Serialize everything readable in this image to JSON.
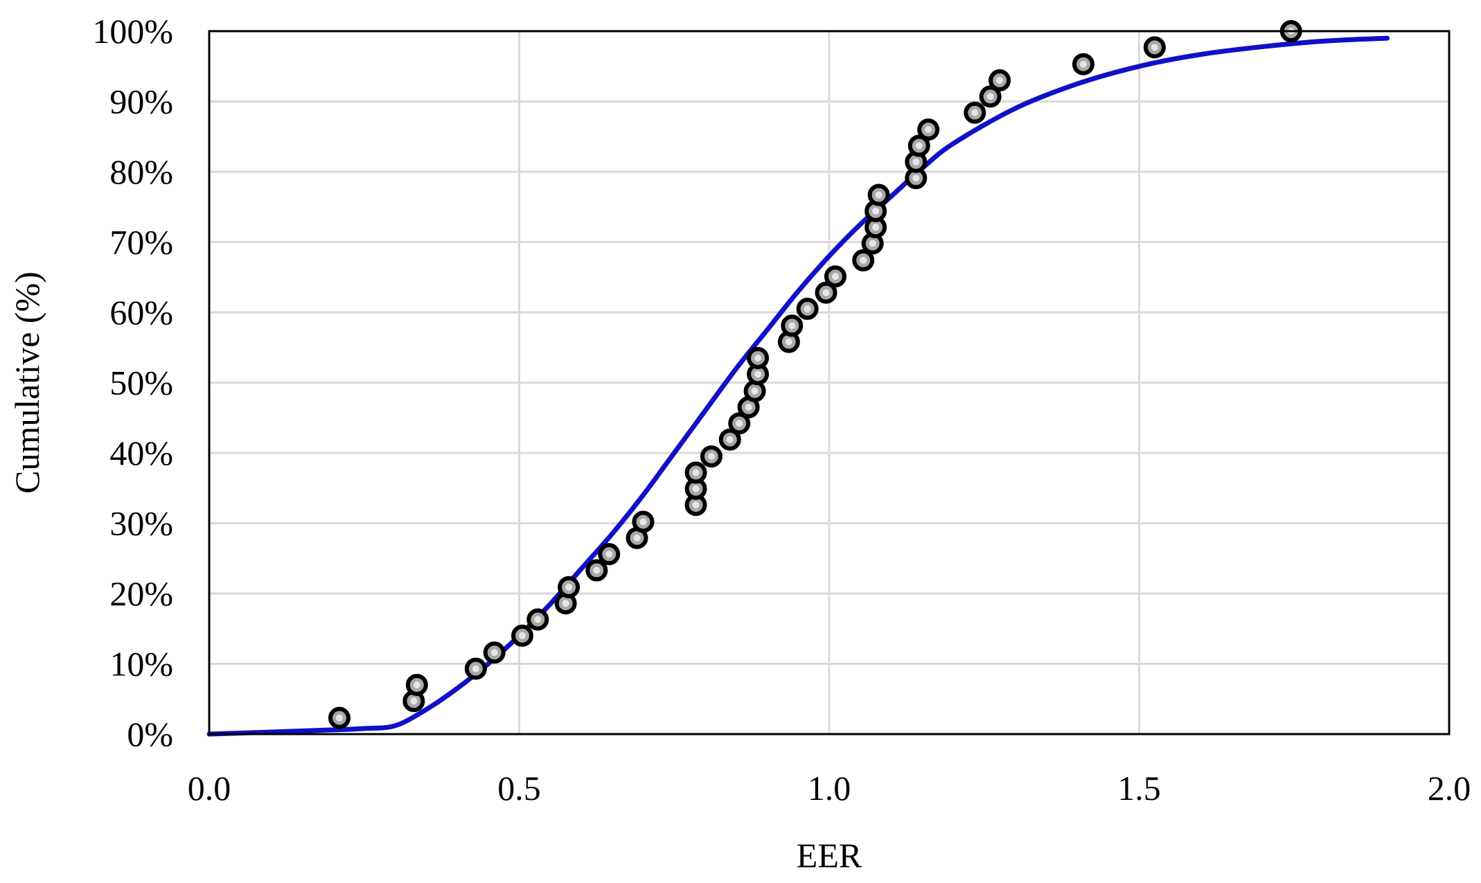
{
  "chart_data": {
    "type": "scatter",
    "title": "",
    "xlabel": "EER",
    "ylabel": "Cumulative (%)",
    "xlim": [
      0.0,
      2.0
    ],
    "ylim": [
      0,
      100
    ],
    "xticks": [
      0.0,
      0.5,
      1.0,
      1.5,
      2.0
    ],
    "xtick_labels": [
      "0.0",
      "0.5",
      "1.0",
      "1.5",
      "2.0"
    ],
    "yticks": [
      0,
      10,
      20,
      30,
      40,
      50,
      60,
      70,
      80,
      90,
      100
    ],
    "ytick_labels": [
      "0%",
      "10%",
      "20%",
      "30%",
      "40%",
      "50%",
      "60%",
      "70%",
      "80%",
      "90%",
      "100%"
    ],
    "grid": true,
    "legend": "none",
    "colors": {
      "curve": "#1010c8",
      "marker_edge": "#000000",
      "marker_fill": "#a8a8a8",
      "grid": "#d9d9d9",
      "frame": "#000000"
    },
    "points": {
      "x": [
        0.21,
        0.33,
        0.335,
        0.43,
        0.46,
        0.505,
        0.53,
        0.575,
        0.58,
        0.625,
        0.645,
        0.69,
        0.7,
        0.785,
        0.785,
        0.785,
        0.81,
        0.84,
        0.855,
        0.87,
        0.88,
        0.885,
        0.885,
        0.935,
        0.94,
        0.965,
        0.995,
        1.01,
        1.055,
        1.07,
        1.075,
        1.075,
        1.08,
        1.14,
        1.14,
        1.145,
        1.16,
        1.235,
        1.26,
        1.275,
        1.41,
        1.525,
        1.745
      ],
      "y": [
        2.3,
        4.7,
        7.0,
        9.3,
        11.6,
        14.0,
        16.3,
        18.6,
        20.9,
        23.3,
        25.6,
        27.9,
        30.2,
        32.6,
        34.9,
        37.2,
        39.5,
        41.9,
        44.2,
        46.5,
        48.8,
        51.2,
        53.5,
        55.8,
        58.1,
        60.5,
        62.8,
        65.1,
        67.4,
        69.8,
        72.1,
        74.4,
        76.7,
        79.1,
        81.4,
        83.7,
        86.0,
        88.4,
        90.7,
        93.0,
        95.3,
        97.7,
        100.0
      ]
    },
    "curve": {
      "x": [
        0.0,
        0.1,
        0.2,
        0.25,
        0.3,
        0.35,
        0.4,
        0.45,
        0.5,
        0.55,
        0.6,
        0.65,
        0.7,
        0.75,
        0.8,
        0.85,
        0.9,
        0.95,
        1.0,
        1.05,
        1.1,
        1.15,
        1.2,
        1.3,
        1.4,
        1.5,
        1.6,
        1.7,
        1.8,
        1.9
      ],
      "y": [
        0.0,
        0.3,
        0.6,
        0.8,
        1.2,
        3.5,
        6.5,
        10.0,
        14.0,
        18.5,
        23.5,
        28.5,
        34.0,
        40.0,
        46.0,
        52.0,
        57.5,
        63.0,
        68.0,
        72.5,
        76.5,
        80.5,
        84.0,
        89.0,
        92.5,
        95.0,
        96.7,
        97.8,
        98.6,
        99.0
      ]
    }
  }
}
